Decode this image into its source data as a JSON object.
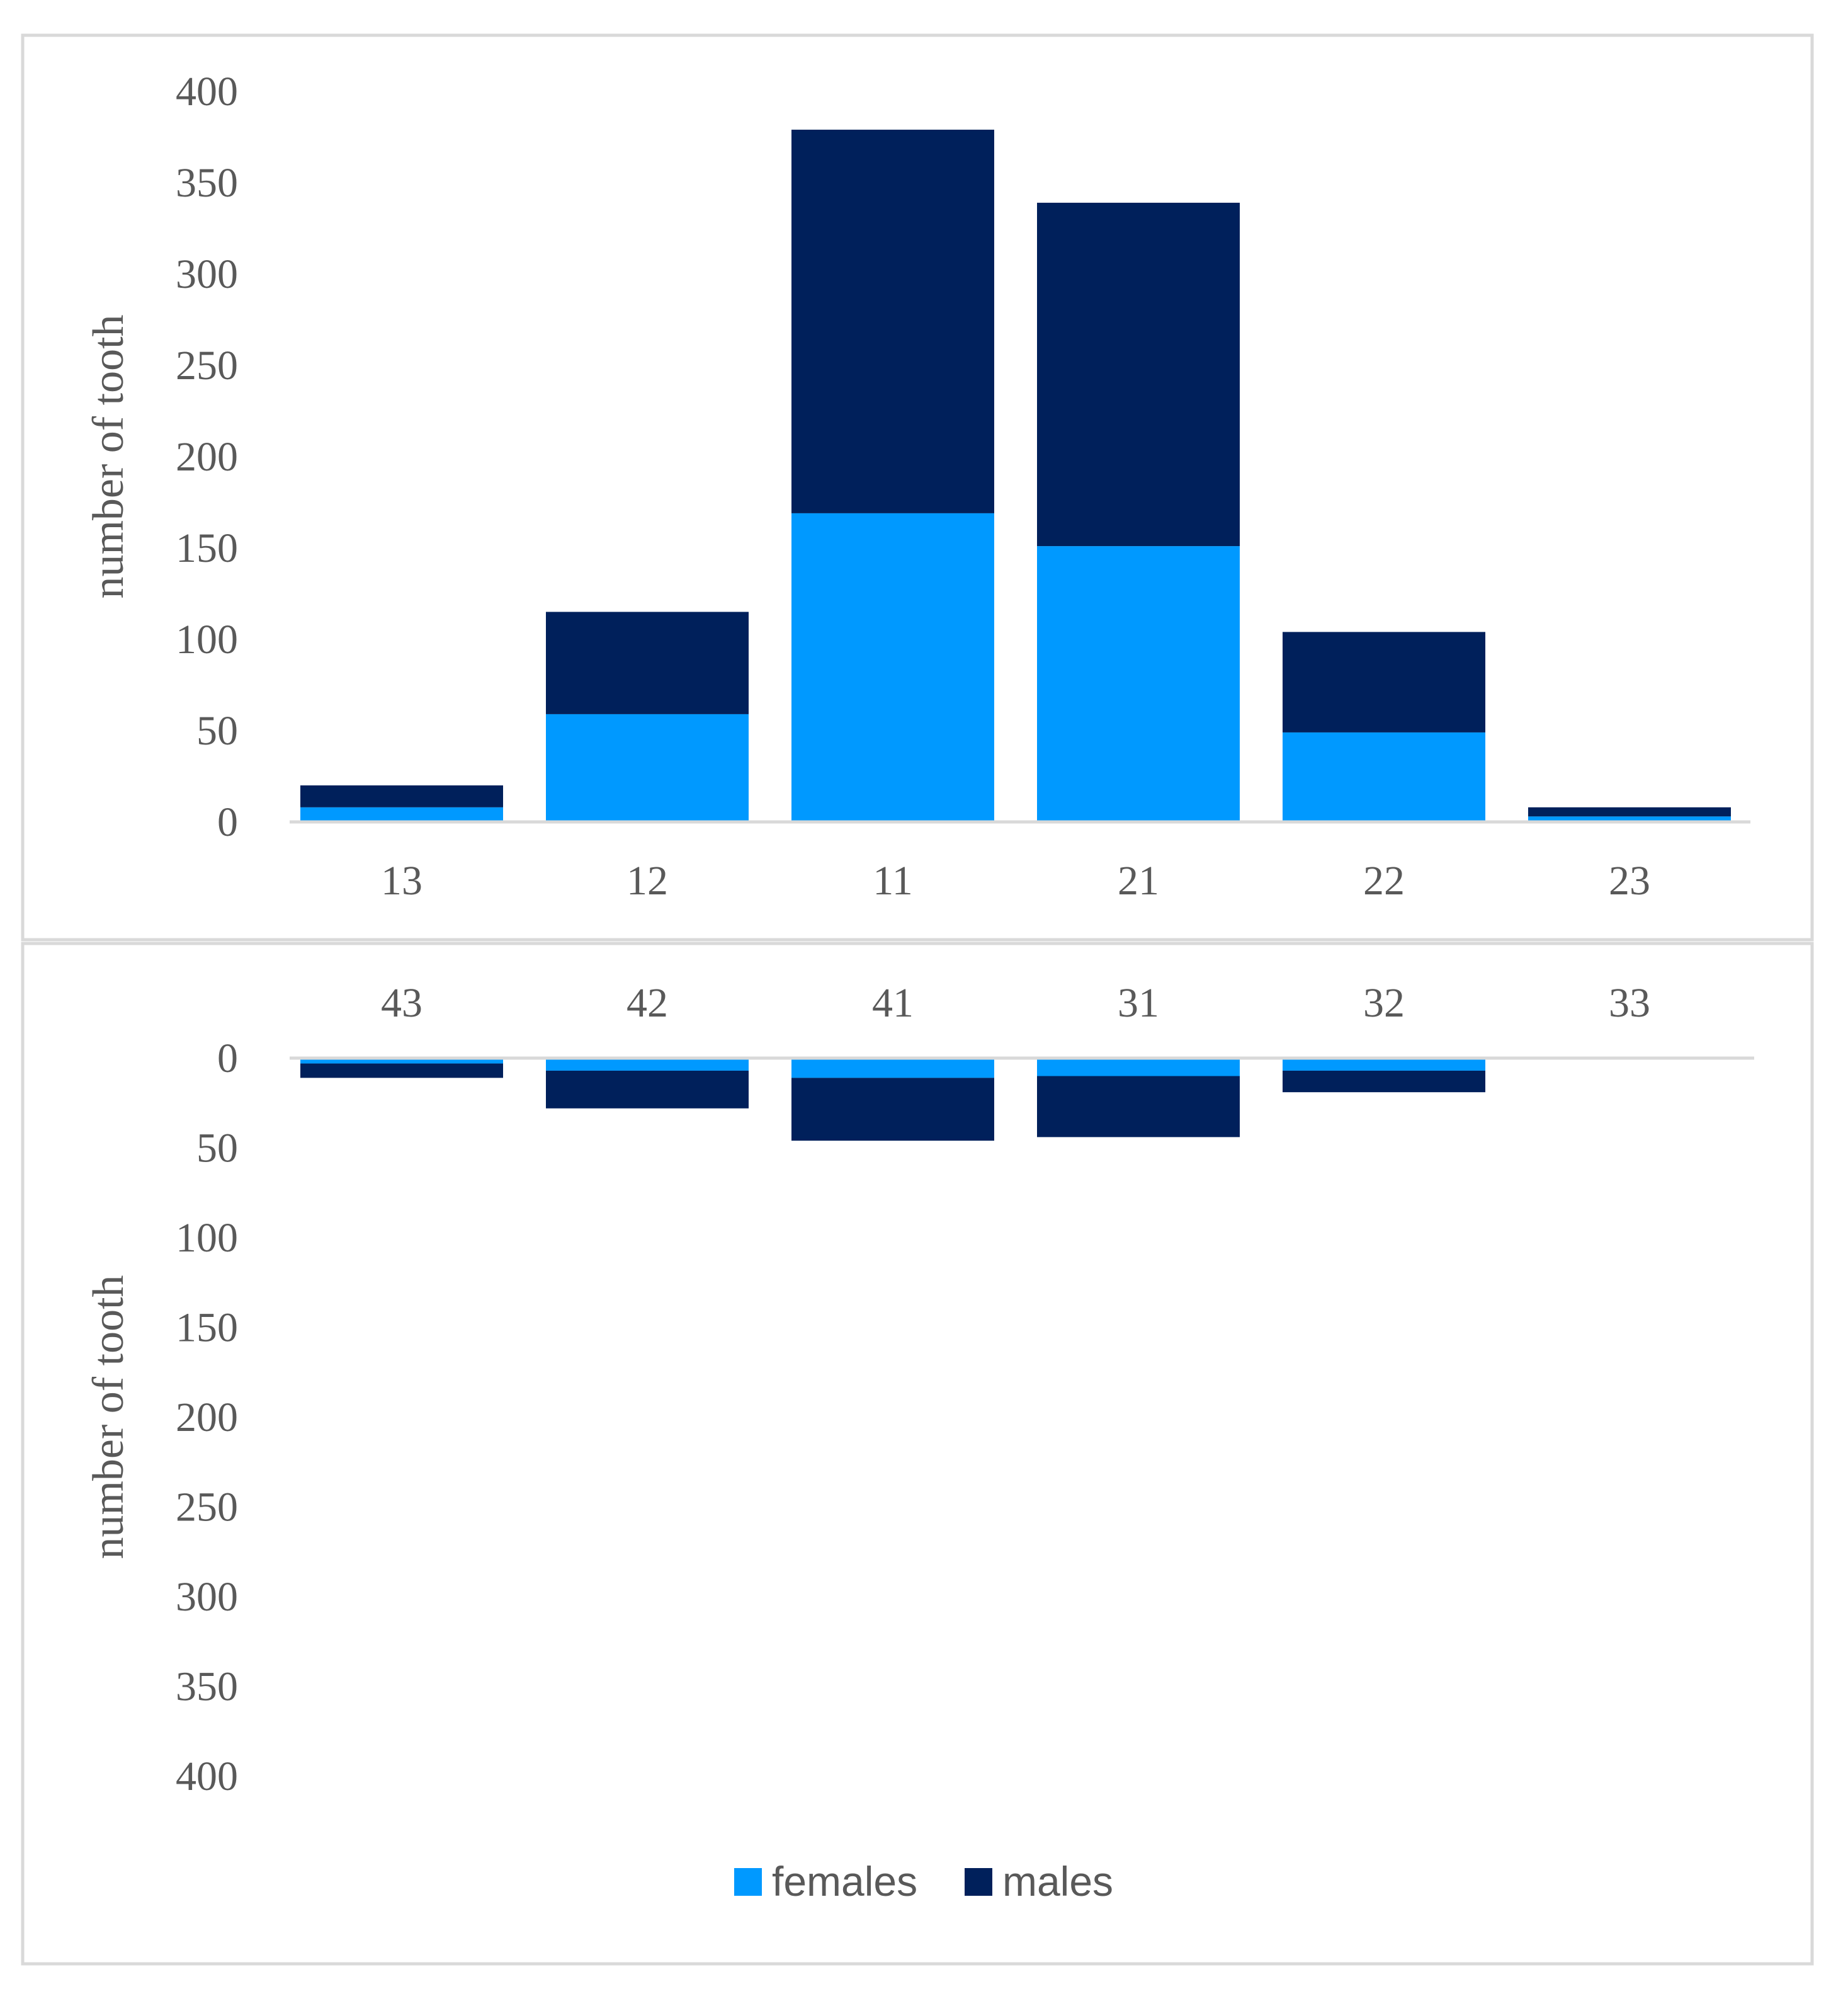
{
  "colors": {
    "females": "#0099FF",
    "males": "#00205B",
    "axis": "#D9D9D9",
    "frame": "#D9D9D9",
    "text": "#595959"
  },
  "legend": {
    "females": "females",
    "males": "males"
  },
  "chart_data": [
    {
      "type": "bar",
      "stacked": true,
      "orientation": "up",
      "name": "upper",
      "categories": [
        "13",
        "12",
        "11",
        "21",
        "22",
        "23"
      ],
      "series": [
        {
          "name": "females",
          "values": [
            8,
            59,
            169,
            151,
            49,
            3
          ]
        },
        {
          "name": "males",
          "values": [
            12,
            56,
            210,
            188,
            55,
            5
          ]
        }
      ],
      "ylabel": "number of tooth",
      "yticks": [
        "0",
        "50",
        "100",
        "150",
        "200",
        "250",
        "300",
        "350",
        "400"
      ],
      "ylim": [
        0,
        400
      ]
    },
    {
      "type": "bar",
      "stacked": true,
      "orientation": "down",
      "name": "lower",
      "categories": [
        "43",
        "42",
        "41",
        "31",
        "32",
        "33"
      ],
      "series": [
        {
          "name": "females",
          "values": [
            3,
            7,
            11,
            10,
            7,
            0
          ]
        },
        {
          "name": "males",
          "values": [
            8,
            21,
            35,
            34,
            12,
            0
          ]
        }
      ],
      "ylabel": "number of tooth",
      "yticks": [
        "0",
        "50",
        "100",
        "150",
        "200",
        "250",
        "300",
        "350",
        "400"
      ],
      "ylim": [
        0,
        400
      ]
    }
  ]
}
